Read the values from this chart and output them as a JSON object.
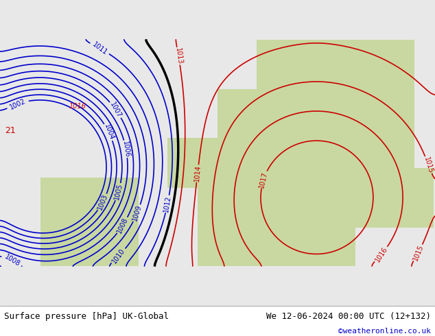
{
  "title_left": "Surface pressure [hPa] UK-Global",
  "title_right": "We 12-06-2024 00:00 UTC (12+132)",
  "credit": "©weatheronline.co.uk",
  "background_color": "#e8e8e8",
  "land_color": "#c8d8a0",
  "sea_color": "#d0d8e8",
  "blue_contour_color": "#0000cc",
  "red_contour_color": "#cc0000",
  "black_contour_color": "#000000",
  "bottom_bar_color": "#ffffff",
  "figsize": [
    6.34,
    4.9
  ],
  "dpi": 100
}
